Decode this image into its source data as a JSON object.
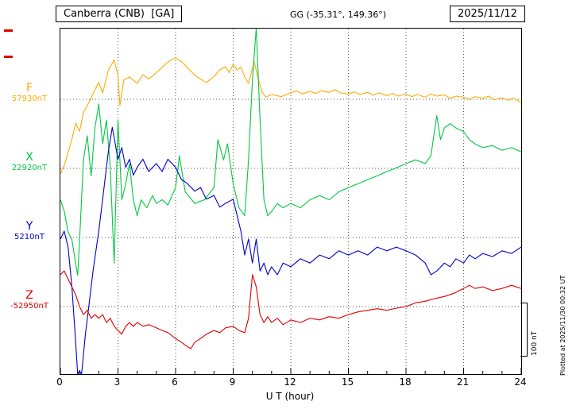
{
  "header": {
    "station": "Canberra (CNB)  [GA]",
    "coords": "GG (-35.31°, 149.36°)",
    "date": "2025/11/12"
  },
  "footer": {
    "plotted_note": "Plotted at 2025/11/30 00:32 UT"
  },
  "chart_data": {
    "type": "line",
    "title": "Canberra (CNB) [GA] magnetogram 2025/11/12",
    "xlabel": "U T (hour)",
    "xlim": [
      0,
      24
    ],
    "x_ticks": [
      0,
      3,
      6,
      9,
      12,
      15,
      18,
      21,
      24
    ],
    "scale_bar_label": "100 nT",
    "scale_bar_nT": 100,
    "grid": "dotted vertical lines every 3 hours; dotted horizontal line at each series baseline",
    "series": [
      {
        "name": "F",
        "baseline_label": "57930nT",
        "baseline_nT": 57930,
        "color": "#FFAA00",
        "x": [
          0,
          0.2,
          0.4,
          0.6,
          0.8,
          1.0,
          1.2,
          1.5,
          1.8,
          2.0,
          2.2,
          2.5,
          2.8,
          3.0,
          3.1,
          3.3,
          3.6,
          4.0,
          4.3,
          4.6,
          5.0,
          5.3,
          5.6,
          6.0,
          6.3,
          6.6,
          7.0,
          7.3,
          7.6,
          8.0,
          8.3,
          8.6,
          8.8,
          9.0,
          9.2,
          9.4,
          9.6,
          9.8,
          10.0,
          10.1,
          10.3,
          10.5,
          10.7,
          11.0,
          11.5,
          12.0,
          12.3,
          12.6,
          13.0,
          13.3,
          13.6,
          14.0,
          14.3,
          14.6,
          15.0,
          15.3,
          15.6,
          16.0,
          16.3,
          16.6,
          17.0,
          17.3,
          17.6,
          18.0,
          18.3,
          18.6,
          19.0,
          19.3,
          19.6,
          20.0,
          20.3,
          20.6,
          21.0,
          21.3,
          21.6,
          22.0,
          22.3,
          22.6,
          23.0,
          23.3,
          23.6,
          24.0
        ],
        "offset_nT": [
          -140,
          -125,
          -100,
          -75,
          -45,
          -60,
          -25,
          -5,
          18,
          32,
          12,
          55,
          74,
          45,
          -12,
          36,
          42,
          30,
          46,
          38,
          50,
          60,
          70,
          78,
          71,
          60,
          45,
          38,
          31,
          43,
          55,
          61,
          50,
          66,
          55,
          61,
          42,
          30,
          58,
          70,
          38,
          14,
          4,
          9,
          5,
          12,
          16,
          10,
          15,
          11,
          16,
          13,
          18,
          12,
          10,
          14,
          9,
          13,
          8,
          12,
          7,
          11,
          6,
          10,
          5,
          9,
          4,
          10,
          6,
          8,
          2,
          6,
          4,
          0,
          5,
          2,
          6,
          -1,
          3,
          -2,
          2,
          -6
        ]
      },
      {
        "name": "X",
        "baseline_label": "22920nT",
        "baseline_nT": 22920,
        "color": "#00C840",
        "x": [
          0,
          0.2,
          0.4,
          0.6,
          0.8,
          0.9,
          1.0,
          1.1,
          1.2,
          1.4,
          1.6,
          1.8,
          2.0,
          2.2,
          2.4,
          2.6,
          2.8,
          3.0,
          3.2,
          3.4,
          3.6,
          3.8,
          4.0,
          4.2,
          4.5,
          4.8,
          5.0,
          5.3,
          5.6,
          6.0,
          6.2,
          6.5,
          7.0,
          7.5,
          8.0,
          8.2,
          8.5,
          8.7,
          9.0,
          9.3,
          9.6,
          9.8,
          10.0,
          10.2,
          10.4,
          10.6,
          10.8,
          11.0,
          11.3,
          11.6,
          12.0,
          12.5,
          13.0,
          13.5,
          14.0,
          14.5,
          15.0,
          15.5,
          16.0,
          16.5,
          17.0,
          17.5,
          18.0,
          18.5,
          19.0,
          19.3,
          19.6,
          19.8,
          20.0,
          20.3,
          20.6,
          21.0,
          21.3,
          21.6,
          22.0,
          22.5,
          23.0,
          23.5,
          24.0
        ],
        "offset_nT": [
          -59,
          -80,
          -120,
          -134,
          -180,
          -201,
          -134,
          -60,
          16,
          61,
          -14,
          76,
          121,
          46,
          91,
          1,
          -178,
          91,
          -59,
          -29,
          9,
          -59,
          -89,
          -59,
          -74,
          -51,
          -66,
          -59,
          -69,
          -36,
          24,
          -44,
          -66,
          -59,
          -36,
          54,
          16,
          46,
          -29,
          -74,
          -89,
          16,
          166,
          264,
          91,
          -59,
          -89,
          -81,
          -66,
          -74,
          -66,
          -74,
          -59,
          -51,
          -59,
          -44,
          -36,
          -29,
          -21,
          -14,
          -6,
          1,
          9,
          16,
          9,
          24,
          99,
          54,
          76,
          84,
          76,
          69,
          54,
          46,
          39,
          43,
          34,
          39,
          31
        ]
      },
      {
        "name": "Y",
        "baseline_label": "5210nT",
        "baseline_nT": 5210,
        "color": "#0000CC",
        "x": [
          0,
          0.2,
          0.4,
          0.6,
          0.8,
          0.9,
          1.0,
          1.1,
          1.3,
          1.5,
          1.7,
          2.0,
          2.2,
          2.5,
          2.7,
          3.0,
          3.2,
          3.4,
          3.6,
          3.8,
          4.0,
          4.3,
          4.6,
          5.0,
          5.3,
          5.6,
          6.0,
          6.3,
          6.6,
          7.0,
          7.3,
          7.6,
          8.0,
          8.3,
          8.6,
          9.0,
          9.2,
          9.4,
          9.6,
          9.8,
          10.0,
          10.2,
          10.4,
          10.6,
          10.8,
          11.0,
          11.3,
          11.6,
          12.0,
          12.5,
          13.0,
          13.5,
          14.0,
          14.5,
          15.0,
          15.5,
          16.0,
          16.5,
          17.0,
          17.5,
          18.0,
          18.5,
          19.0,
          19.3,
          19.6,
          20.0,
          20.3,
          20.6,
          21.0,
          21.3,
          21.6,
          22.0,
          22.5,
          23.0,
          23.5,
          24.0
        ],
        "offset_nT": [
          -3,
          12,
          -18,
          -93,
          -198,
          -258,
          -250,
          -258,
          -183,
          -123,
          -63,
          12,
          72,
          162,
          207,
          147,
          169,
          132,
          147,
          117,
          132,
          147,
          124,
          139,
          124,
          147,
          132,
          109,
          102,
          87,
          94,
          72,
          79,
          57,
          64,
          72,
          42,
          12,
          -33,
          -3,
          -48,
          -3,
          -63,
          -48,
          -70,
          -55,
          -70,
          -48,
          -55,
          -40,
          -48,
          -33,
          -40,
          -25,
          -33,
          -25,
          -33,
          -18,
          -25,
          -18,
          -25,
          -33,
          -48,
          -70,
          -63,
          -48,
          -55,
          -40,
          -48,
          -33,
          -40,
          -30,
          -36,
          -25,
          -30,
          -18
        ]
      },
      {
        "name": "Z",
        "baseline_label": "-52950nT",
        "baseline_nT": -52950,
        "color": "#E00000",
        "x": [
          0,
          0.2,
          0.4,
          0.6,
          0.8,
          1.0,
          1.2,
          1.4,
          1.6,
          1.8,
          2.0,
          2.2,
          2.4,
          2.6,
          2.8,
          3.0,
          3.2,
          3.4,
          3.6,
          3.8,
          4.0,
          4.3,
          4.6,
          5.0,
          5.3,
          5.6,
          6.0,
          6.3,
          6.6,
          6.8,
          7.0,
          7.3,
          7.6,
          8.0,
          8.3,
          8.6,
          9.0,
          9.3,
          9.6,
          9.8,
          10.0,
          10.2,
          10.4,
          10.6,
          10.8,
          11.0,
          11.3,
          11.6,
          12.0,
          12.5,
          13.0,
          13.5,
          14.0,
          14.5,
          15.0,
          15.5,
          16.0,
          16.5,
          17.0,
          17.5,
          18.0,
          18.5,
          19.0,
          19.5,
          20.0,
          20.5,
          21.0,
          21.3,
          21.6,
          22.0,
          22.5,
          23.0,
          23.5,
          24.0
        ],
        "offset_nT": [
          60,
          67,
          52,
          37,
          22,
          0,
          -15,
          -7,
          -22,
          -15,
          -22,
          -15,
          -30,
          -22,
          -37,
          -45,
          -52,
          -37,
          -30,
          -37,
          -30,
          -37,
          -34,
          -40,
          -45,
          -49,
          -60,
          -67,
          -75,
          -79,
          -67,
          -60,
          -52,
          -45,
          -49,
          -40,
          -37,
          -45,
          -49,
          -22,
          60,
          37,
          -15,
          -30,
          -19,
          -30,
          -22,
          -34,
          -25,
          -30,
          -22,
          -25,
          -19,
          -22,
          -15,
          -10,
          -7,
          -4,
          -7,
          -3,
          0,
          7,
          10,
          15,
          19,
          25,
          34,
          40,
          34,
          37,
          30,
          34,
          40,
          34
        ]
      }
    ]
  }
}
